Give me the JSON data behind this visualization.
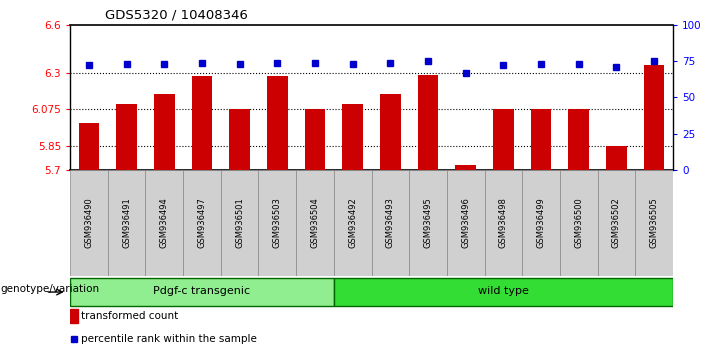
{
  "title": "GDS5320 / 10408346",
  "samples": [
    "GSM936490",
    "GSM936491",
    "GSM936494",
    "GSM936497",
    "GSM936501",
    "GSM936503",
    "GSM936504",
    "GSM936492",
    "GSM936493",
    "GSM936495",
    "GSM936496",
    "GSM936498",
    "GSM936499",
    "GSM936500",
    "GSM936502",
    "GSM936505"
  ],
  "bar_values": [
    5.99,
    6.11,
    6.17,
    6.285,
    6.075,
    6.285,
    6.075,
    6.11,
    6.17,
    6.29,
    5.73,
    6.075,
    6.075,
    6.075,
    5.85,
    6.35
  ],
  "percentile_values": [
    72,
    73,
    73,
    74,
    73,
    74,
    74,
    73,
    74,
    75,
    67,
    72,
    73,
    73,
    71,
    75
  ],
  "bar_color": "#cc0000",
  "percentile_color": "#0000cc",
  "ylim_left": [
    5.7,
    6.6
  ],
  "ylim_right": [
    0,
    100
  ],
  "yticks_left": [
    5.7,
    5.85,
    6.075,
    6.3,
    6.6
  ],
  "ytick_labels_left": [
    "5.7",
    "5.85",
    "6.075",
    "6.3",
    "6.6"
  ],
  "yticks_right": [
    0,
    25,
    50,
    75,
    100
  ],
  "ytick_labels_right": [
    "0",
    "25",
    "50",
    "75",
    "100%"
  ],
  "hlines": [
    5.85,
    6.075,
    6.3
  ],
  "groups": [
    {
      "label": "Pdgf-c transgenic",
      "start": 0,
      "end": 7,
      "color": "#90ee90"
    },
    {
      "label": "wild type",
      "start": 7,
      "end": 16,
      "color": "#33dd33"
    }
  ],
  "group_label": "genotype/variation",
  "legend_bar_label": "transformed count",
  "legend_pct_label": "percentile rank within the sample",
  "bar_bottom": 5.7,
  "fig_width": 7.01,
  "fig_height": 3.54,
  "dpi": 100
}
